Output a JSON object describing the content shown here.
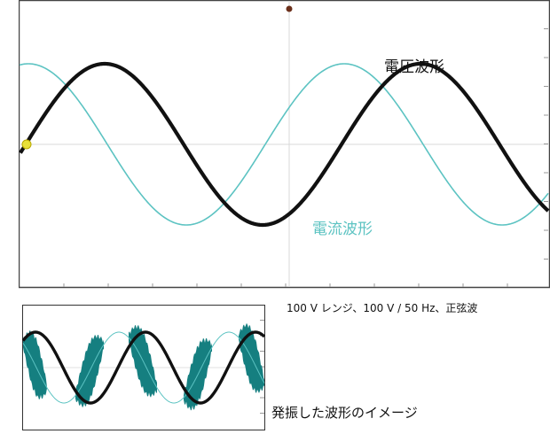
{
  "labels": {
    "voltage_waveform": "電圧波形",
    "current_waveform": "電流波形",
    "caption": "100 V レンジ、100 V / 50 Hz、正弦波",
    "oscillation": "発振した波形のイメージ"
  },
  "colors": {
    "voltage": "#111111",
    "current": "#5cc3c2",
    "oscillation_fill": "#157f80",
    "grid": "#d9d9d9",
    "frame": "#444444",
    "trigger_marker": "#e8e03a"
  },
  "icons": {
    "trigger": "trigger-marker-icon",
    "cursor": "cursor-dot-icon"
  }
}
